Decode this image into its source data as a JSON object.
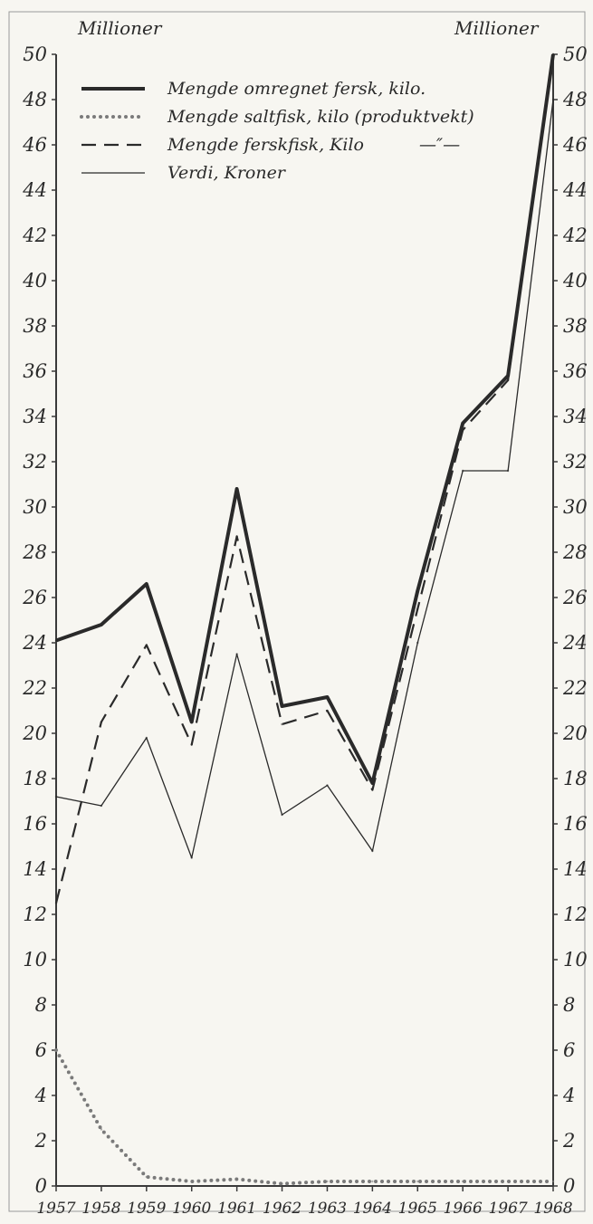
{
  "chart_data": {
    "type": "line",
    "title": "",
    "xlabel": "",
    "ylabel_left": "Millioner",
    "ylabel_right": "Millioner",
    "ylim": [
      0,
      50
    ],
    "yticks": [
      "0",
      "2",
      "4",
      "6",
      "8",
      "10",
      "12",
      "14",
      "16",
      "18",
      "20",
      "22",
      "24",
      "26",
      "28",
      "30",
      "32",
      "34",
      "36",
      "38",
      "40",
      "42",
      "44",
      "46",
      "48",
      "50"
    ],
    "categories": [
      "1957",
      "1958",
      "1959",
      "1960",
      "1961",
      "1962",
      "1963",
      "1964",
      "1965",
      "1966",
      "1967",
      "1968"
    ],
    "grid": false,
    "legend_position": "top-left",
    "series": [
      {
        "name": "Mengde omregnet fersk, kilo.",
        "style": "thick-solid",
        "values": [
          24.1,
          24.8,
          26.6,
          20.5,
          30.8,
          21.2,
          21.6,
          17.8,
          26.3,
          33.7,
          35.8,
          50.0
        ]
      },
      {
        "name": "Mengde saltfisk, kilo (produktvekt)",
        "style": "dotted",
        "values": [
          6.0,
          2.5,
          0.4,
          0.2,
          0.3,
          0.1,
          0.2,
          0.2,
          0.2,
          0.2,
          0.2,
          0.2
        ]
      },
      {
        "name": "Mengde ferskfisk, Kilo",
        "legend_suffix": "—″—",
        "style": "dashed",
        "values": [
          12.5,
          20.5,
          23.9,
          19.5,
          28.7,
          20.4,
          21.0,
          17.5,
          25.5,
          33.4,
          35.6,
          50.0
        ]
      },
      {
        "name": "Verdi, Kroner",
        "style": "thin-solid",
        "values": [
          17.2,
          16.8,
          19.8,
          14.5,
          23.5,
          16.4,
          17.7,
          14.8,
          24.0,
          31.6,
          31.6,
          48.0
        ]
      }
    ]
  },
  "colors": {
    "ink": "#2a2a2a",
    "dotted": "#7a7a7a",
    "paper": "#f7f6f1"
  }
}
